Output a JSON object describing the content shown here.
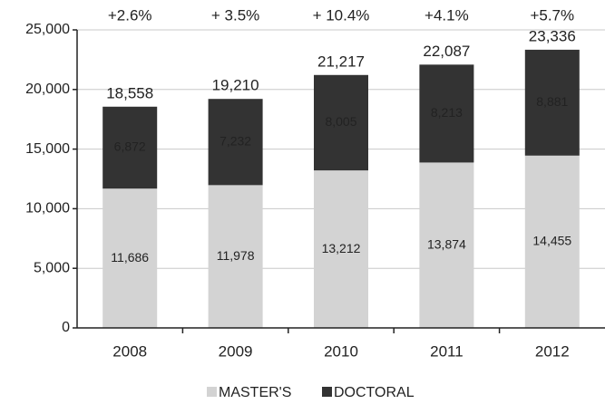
{
  "chart_data": {
    "type": "stacked_bar",
    "categories": [
      "2008",
      "2009",
      "2010",
      "2011",
      "2012"
    ],
    "series": [
      {
        "name": "MASTER'S",
        "color": "#d3d3d3",
        "values": [
          11686,
          11978,
          13212,
          13874,
          14455
        ],
        "value_labels": [
          "11,686",
          "11,978",
          "13,212",
          "13,874",
          "14,455"
        ],
        "label_color": "#222222"
      },
      {
        "name": "DOCTORAL",
        "color": "#333333",
        "values": [
          6872,
          7232,
          8005,
          8213,
          8881
        ],
        "value_labels": [
          "6,872",
          "7,232",
          "8,005",
          "8,213",
          "8,881"
        ],
        "label_color": "#ffffff"
      }
    ],
    "total_labels": [
      "18,558",
      "19,210",
      "21,217",
      "22,087",
      "23,336"
    ],
    "growth_labels": [
      "+2.6%",
      "+ 3.5%",
      "+ 10.4%",
      "+4.1%",
      "+5.7%"
    ],
    "ylim": [
      0,
      25000
    ],
    "yticks": [
      0,
      {
        "value": 5000,
        "label": "5,000"
      },
      {
        "value": 10000,
        "label": "10,000"
      },
      {
        "value": 15000,
        "label": "15,000"
      },
      {
        "value": 20000,
        "label": "20,000"
      },
      {
        "value": 25000,
        "label": "25,000"
      }
    ],
    "grid": true
  }
}
